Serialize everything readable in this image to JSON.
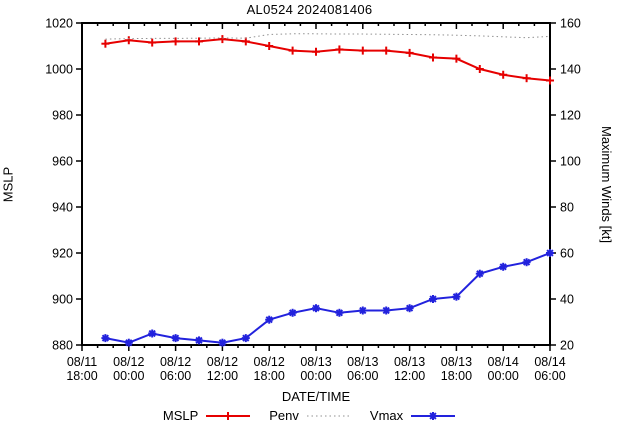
{
  "title": "AL0524 2024081406",
  "colors": {
    "mslp": "#e60000",
    "penv": "#909090",
    "vmax": "#2222dd",
    "axis": "#000000",
    "background": "#ffffff"
  },
  "axes": {
    "y_left": {
      "label": "MSLP",
      "min": 880,
      "max": 1020,
      "step": 20,
      "tick_labels": [
        "880",
        "900",
        "920",
        "940",
        "960",
        "980",
        "1000",
        "1020"
      ]
    },
    "y_right": {
      "label": "Maximum Winds [kt]",
      "min": 20,
      "max": 160,
      "step": 20,
      "tick_labels": [
        "20",
        "40",
        "60",
        "80",
        "100",
        "120",
        "140",
        "160"
      ]
    },
    "x": {
      "label": "DATE/TIME",
      "span_hours": 60,
      "major_step_hours": 6,
      "minor_step_hours": 2,
      "tick_labels": [
        {
          "date": "08/11",
          "time": "18:00"
        },
        {
          "date": "08/12",
          "time": "00:00"
        },
        {
          "date": "08/12",
          "time": "06:00"
        },
        {
          "date": "08/12",
          "time": "12:00"
        },
        {
          "date": "08/12",
          "time": "18:00"
        },
        {
          "date": "08/13",
          "time": "00:00"
        },
        {
          "date": "08/13",
          "time": "06:00"
        },
        {
          "date": "08/13",
          "time": "12:00"
        },
        {
          "date": "08/13",
          "time": "18:00"
        },
        {
          "date": "08/14",
          "time": "00:00"
        },
        {
          "date": "08/14",
          "time": "06:00"
        }
      ]
    }
  },
  "chart_data": {
    "type": "line",
    "title": "AL0524 2024081406",
    "xlabel": "DATE/TIME",
    "ylabel_left": "MSLP",
    "ylabel_right": "Maximum Winds [kt]",
    "ylim_left": [
      880,
      1020
    ],
    "ylim_right": [
      20,
      160
    ],
    "x_range": [
      "08/11 18:00",
      "08/14 06:00"
    ],
    "grid": false,
    "legend_position": "bottom-center",
    "x_datetimes": [
      "08/11 21:00",
      "08/12 00:00",
      "08/12 03:00",
      "08/12 06:00",
      "08/12 09:00",
      "08/12 12:00",
      "08/12 15:00",
      "08/12 18:00",
      "08/12 21:00",
      "08/13 00:00",
      "08/13 03:00",
      "08/13 06:00",
      "08/13 09:00",
      "08/13 12:00",
      "08/13 15:00",
      "08/13 18:00",
      "08/13 21:00",
      "08/14 00:00",
      "08/14 03:00",
      "08/14 06:00"
    ],
    "x_offset_hours": [
      3,
      6,
      9,
      12,
      15,
      18,
      21,
      24,
      27,
      30,
      33,
      36,
      39,
      42,
      45,
      48,
      51,
      54,
      57,
      60
    ],
    "series": [
      {
        "name": "MSLP",
        "axis": "left",
        "style": "solid",
        "marker": "plus",
        "color": "#e60000",
        "values": [
          1011,
          1012.5,
          1011.5,
          1012,
          1012,
          1013,
          1012,
          1010,
          1008,
          1007.5,
          1008.5,
          1008,
          1008,
          1007,
          1005,
          1004.5,
          1000,
          997.5,
          996,
          995
        ]
      },
      {
        "name": "Penv",
        "axis": "left",
        "style": "dotted",
        "marker": "none",
        "color": "#909090",
        "values": [
          1013,
          1013.2,
          1013.3,
          1013.3,
          1013.4,
          1013.5,
          1013.4,
          1015,
          1015.3,
          1015.3,
          1015.2,
          1015.2,
          1015.1,
          1015,
          1014.9,
          1014.7,
          1014.4,
          1014,
          1013.6,
          1014.2
        ]
      },
      {
        "name": "Vmax",
        "axis": "right",
        "style": "solid",
        "marker": "asterisk",
        "color": "#2222dd",
        "values": [
          23,
          21,
          25,
          23,
          22,
          21,
          23,
          31,
          34,
          36,
          34,
          35,
          35,
          36,
          40,
          41,
          51,
          54,
          56,
          60
        ]
      }
    ]
  },
  "legend": {
    "items": [
      {
        "label": "MSLP",
        "series_index": 0
      },
      {
        "label": "Penv",
        "series_index": 1
      },
      {
        "label": "Vmax",
        "series_index": 2
      }
    ]
  }
}
